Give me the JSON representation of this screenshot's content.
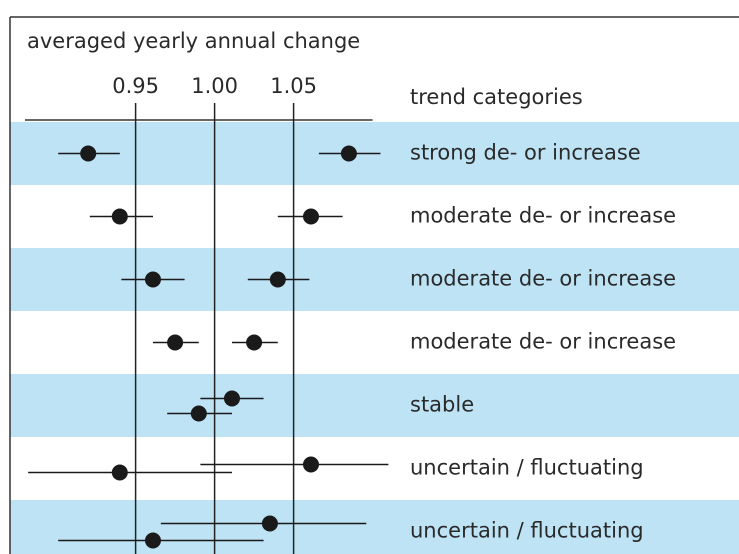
{
  "chart_data": {
    "type": "dot-whisker",
    "title": "averaged yearly annual change",
    "category_header": "trend categories",
    "categories": [
      "strong de- or increase",
      "moderate de- or increase",
      "moderate de- or increase",
      "moderate de- or increase",
      "stable",
      "uncertain / fluctuating",
      "uncertain / fluctuating"
    ],
    "xlim": [
      0.88,
      1.1
    ],
    "xticks": [
      0.95,
      {
        "value": 1,
        "label": "1.00"
      },
      1.05
    ],
    "color": "#1a1a1a",
    "band_color": "#bde3f5",
    "series": [
      {
        "values": [
          1.085,
          1.061,
          1.04,
          1.025,
          1.011,
          1.061,
          1.035
        ],
        "lower": [
          1.066,
          1.04,
          1.021,
          1.011,
          0.991,
          0.991,
          0.966
        ],
        "upper": [
          1.105,
          1.081,
          1.06,
          1.04,
          1.031,
          1.11,
          1.096
        ]
      },
      {
        "values": [
          0.92,
          0.94,
          0.961,
          0.975,
          0.99,
          0.94,
          0.961
        ],
        "lower": [
          0.901,
          0.921,
          0.941,
          0.961,
          0.97,
          0.882,
          0.901
        ],
        "upper": [
          0.94,
          0.961,
          0.981,
          0.99,
          1.011,
          1.011,
          1.031
        ]
      }
    ]
  }
}
